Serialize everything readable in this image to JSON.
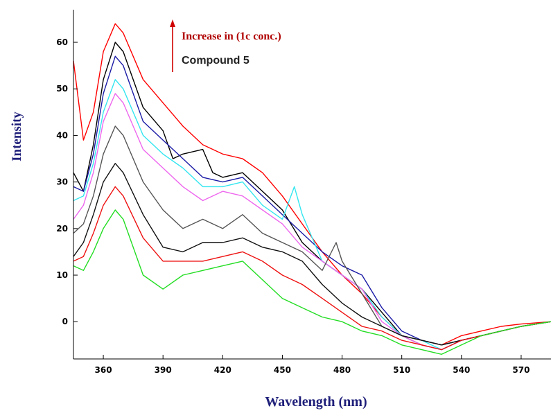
{
  "chart_data": {
    "type": "line",
    "xlabel": "Wavelength (nm)",
    "ylabel": "Intensity",
    "xlim": [
      345,
      585
    ],
    "ylim": [
      -8,
      67
    ],
    "xticks": [
      360,
      390,
      420,
      450,
      480,
      510,
      540,
      570
    ],
    "yticks": [
      0,
      10,
      20,
      30,
      40,
      50,
      60
    ],
    "xtick_labels": [
      "360",
      "390",
      "420",
      "450",
      "480",
      "510",
      "540",
      "570"
    ],
    "ytick_labels": [
      "0",
      "10",
      "20",
      "30",
      "40",
      "50",
      "60"
    ],
    "annotations": {
      "arrow_label": "Increase in (1c conc.)",
      "compound_label": "Compound 5"
    },
    "grid": false,
    "series": [
      {
        "color": "#ff0000",
        "points": [
          [
            345,
            56
          ],
          [
            350,
            39
          ],
          [
            355,
            45
          ],
          [
            360,
            58
          ],
          [
            366,
            64
          ],
          [
            370,
            62
          ],
          [
            380,
            52
          ],
          [
            390,
            47
          ],
          [
            400,
            42
          ],
          [
            410,
            38
          ],
          [
            420,
            36
          ],
          [
            430,
            35
          ],
          [
            440,
            32
          ],
          [
            450,
            27
          ],
          [
            460,
            21
          ],
          [
            470,
            15
          ],
          [
            480,
            10
          ],
          [
            490,
            6
          ],
          [
            500,
            1
          ],
          [
            510,
            -3
          ],
          [
            520,
            -4
          ],
          [
            530,
            -5
          ],
          [
            540,
            -3
          ],
          [
            550,
            -2
          ],
          [
            560,
            -1
          ],
          [
            570,
            -0.5
          ],
          [
            585,
            0
          ]
        ]
      },
      {
        "color": "#000000",
        "points": [
          [
            345,
            32
          ],
          [
            350,
            28
          ],
          [
            355,
            38
          ],
          [
            360,
            52
          ],
          [
            366,
            60
          ],
          [
            370,
            58
          ],
          [
            380,
            46
          ],
          [
            390,
            41
          ],
          [
            395,
            35
          ],
          [
            400,
            36
          ],
          [
            410,
            37
          ],
          [
            415,
            32
          ],
          [
            420,
            31
          ],
          [
            430,
            32
          ],
          [
            440,
            28
          ],
          [
            450,
            24
          ],
          [
            460,
            17
          ],
          [
            470,
            13
          ],
          [
            480,
            10
          ],
          [
            490,
            7
          ],
          [
            500,
            2
          ],
          [
            510,
            -3
          ],
          [
            520,
            -5
          ],
          [
            530,
            -6
          ],
          [
            540,
            -4
          ],
          [
            550,
            -3
          ],
          [
            560,
            -2
          ],
          [
            570,
            -1
          ],
          [
            585,
            0
          ]
        ]
      },
      {
        "color": "#1a1aa6",
        "points": [
          [
            345,
            29
          ],
          [
            350,
            28
          ],
          [
            355,
            36
          ],
          [
            360,
            49
          ],
          [
            366,
            57
          ],
          [
            370,
            55
          ],
          [
            380,
            43
          ],
          [
            390,
            39
          ],
          [
            400,
            35
          ],
          [
            410,
            31
          ],
          [
            420,
            30
          ],
          [
            430,
            31
          ],
          [
            440,
            27
          ],
          [
            450,
            23
          ],
          [
            460,
            19
          ],
          [
            470,
            15
          ],
          [
            480,
            12
          ],
          [
            490,
            10
          ],
          [
            500,
            3
          ],
          [
            510,
            -2
          ],
          [
            520,
            -4
          ],
          [
            530,
            -5
          ],
          [
            540,
            -4
          ],
          [
            550,
            -3
          ],
          [
            560,
            -2
          ],
          [
            570,
            -1
          ],
          [
            585,
            0
          ]
        ]
      },
      {
        "color": "#33e6f0",
        "points": [
          [
            345,
            26
          ],
          [
            350,
            27
          ],
          [
            355,
            34
          ],
          [
            360,
            45
          ],
          [
            366,
            52
          ],
          [
            370,
            50
          ],
          [
            380,
            40
          ],
          [
            390,
            36
          ],
          [
            400,
            33
          ],
          [
            410,
            29
          ],
          [
            420,
            29
          ],
          [
            430,
            30
          ],
          [
            440,
            25
          ],
          [
            450,
            22
          ],
          [
            456,
            29
          ],
          [
            460,
            23
          ],
          [
            470,
            13
          ],
          [
            480,
            10
          ],
          [
            490,
            7
          ],
          [
            500,
            1
          ],
          [
            510,
            -3
          ],
          [
            520,
            -4
          ],
          [
            530,
            -6
          ],
          [
            540,
            -4
          ],
          [
            550,
            -3
          ],
          [
            560,
            -2
          ],
          [
            570,
            -1
          ],
          [
            585,
            0
          ]
        ]
      },
      {
        "color": "#ee66ee",
        "points": [
          [
            345,
            22
          ],
          [
            350,
            25
          ],
          [
            355,
            32
          ],
          [
            360,
            43
          ],
          [
            366,
            49
          ],
          [
            370,
            47
          ],
          [
            380,
            37
          ],
          [
            390,
            33
          ],
          [
            400,
            29
          ],
          [
            410,
            26
          ],
          [
            420,
            28
          ],
          [
            430,
            27
          ],
          [
            440,
            24
          ],
          [
            450,
            21
          ],
          [
            460,
            16
          ],
          [
            470,
            13
          ],
          [
            480,
            10
          ],
          [
            490,
            7
          ],
          [
            500,
            0
          ],
          [
            510,
            -3
          ],
          [
            520,
            -5
          ],
          [
            530,
            -6
          ],
          [
            540,
            -4
          ],
          [
            550,
            -3
          ],
          [
            560,
            -2
          ],
          [
            570,
            -1
          ],
          [
            585,
            0
          ]
        ]
      },
      {
        "color": "#555555",
        "points": [
          [
            345,
            19
          ],
          [
            350,
            21
          ],
          [
            355,
            27
          ],
          [
            360,
            36
          ],
          [
            366,
            42
          ],
          [
            370,
            40
          ],
          [
            380,
            30
          ],
          [
            390,
            24
          ],
          [
            400,
            20
          ],
          [
            410,
            22
          ],
          [
            420,
            20
          ],
          [
            430,
            23
          ],
          [
            440,
            19
          ],
          [
            450,
            17
          ],
          [
            460,
            15
          ],
          [
            470,
            11
          ],
          [
            477,
            17
          ],
          [
            480,
            13
          ],
          [
            490,
            6
          ],
          [
            500,
            -1
          ],
          [
            510,
            -3
          ],
          [
            520,
            -4
          ],
          [
            530,
            -5
          ],
          [
            540,
            -4
          ],
          [
            550,
            -3
          ],
          [
            560,
            -2
          ],
          [
            570,
            -1
          ],
          [
            585,
            0
          ]
        ]
      },
      {
        "color": "#111111",
        "points": [
          [
            345,
            14
          ],
          [
            350,
            17
          ],
          [
            355,
            23
          ],
          [
            360,
            30
          ],
          [
            366,
            34
          ],
          [
            370,
            32
          ],
          [
            380,
            23
          ],
          [
            390,
            16
          ],
          [
            400,
            15
          ],
          [
            410,
            17
          ],
          [
            420,
            17
          ],
          [
            430,
            18
          ],
          [
            440,
            16
          ],
          [
            450,
            15
          ],
          [
            460,
            13
          ],
          [
            470,
            8
          ],
          [
            480,
            4
          ],
          [
            490,
            1
          ],
          [
            500,
            -1
          ],
          [
            510,
            -3
          ],
          [
            520,
            -4
          ],
          [
            530,
            -5
          ],
          [
            540,
            -4
          ],
          [
            550,
            -3
          ],
          [
            560,
            -2
          ],
          [
            570,
            -1
          ],
          [
            585,
            0
          ]
        ]
      },
      {
        "color": "#ee1111",
        "points": [
          [
            345,
            13
          ],
          [
            350,
            14
          ],
          [
            355,
            19
          ],
          [
            360,
            25
          ],
          [
            366,
            29
          ],
          [
            370,
            27
          ],
          [
            380,
            18
          ],
          [
            390,
            13
          ],
          [
            400,
            13
          ],
          [
            410,
            13
          ],
          [
            420,
            14
          ],
          [
            430,
            15
          ],
          [
            440,
            13
          ],
          [
            450,
            10
          ],
          [
            460,
            8
          ],
          [
            470,
            5
          ],
          [
            480,
            2
          ],
          [
            490,
            -1
          ],
          [
            500,
            -2
          ],
          [
            510,
            -4
          ],
          [
            520,
            -5
          ],
          [
            530,
            -6
          ],
          [
            540,
            -4
          ],
          [
            550,
            -3
          ],
          [
            560,
            -2
          ],
          [
            570,
            -1
          ],
          [
            585,
            0
          ]
        ]
      },
      {
        "color": "#22dd22",
        "points": [
          [
            345,
            12
          ],
          [
            350,
            11
          ],
          [
            355,
            15
          ],
          [
            360,
            20
          ],
          [
            366,
            24
          ],
          [
            370,
            22
          ],
          [
            380,
            10
          ],
          [
            390,
            7
          ],
          [
            400,
            10
          ],
          [
            410,
            11
          ],
          [
            420,
            12
          ],
          [
            430,
            13
          ],
          [
            440,
            9
          ],
          [
            450,
            5
          ],
          [
            460,
            3
          ],
          [
            470,
            1
          ],
          [
            480,
            0
          ],
          [
            490,
            -2
          ],
          [
            500,
            -3
          ],
          [
            510,
            -5
          ],
          [
            520,
            -6
          ],
          [
            530,
            -7
          ],
          [
            540,
            -5
          ],
          [
            550,
            -3
          ],
          [
            560,
            -2
          ],
          [
            570,
            -1
          ],
          [
            585,
            0
          ]
        ]
      }
    ]
  }
}
